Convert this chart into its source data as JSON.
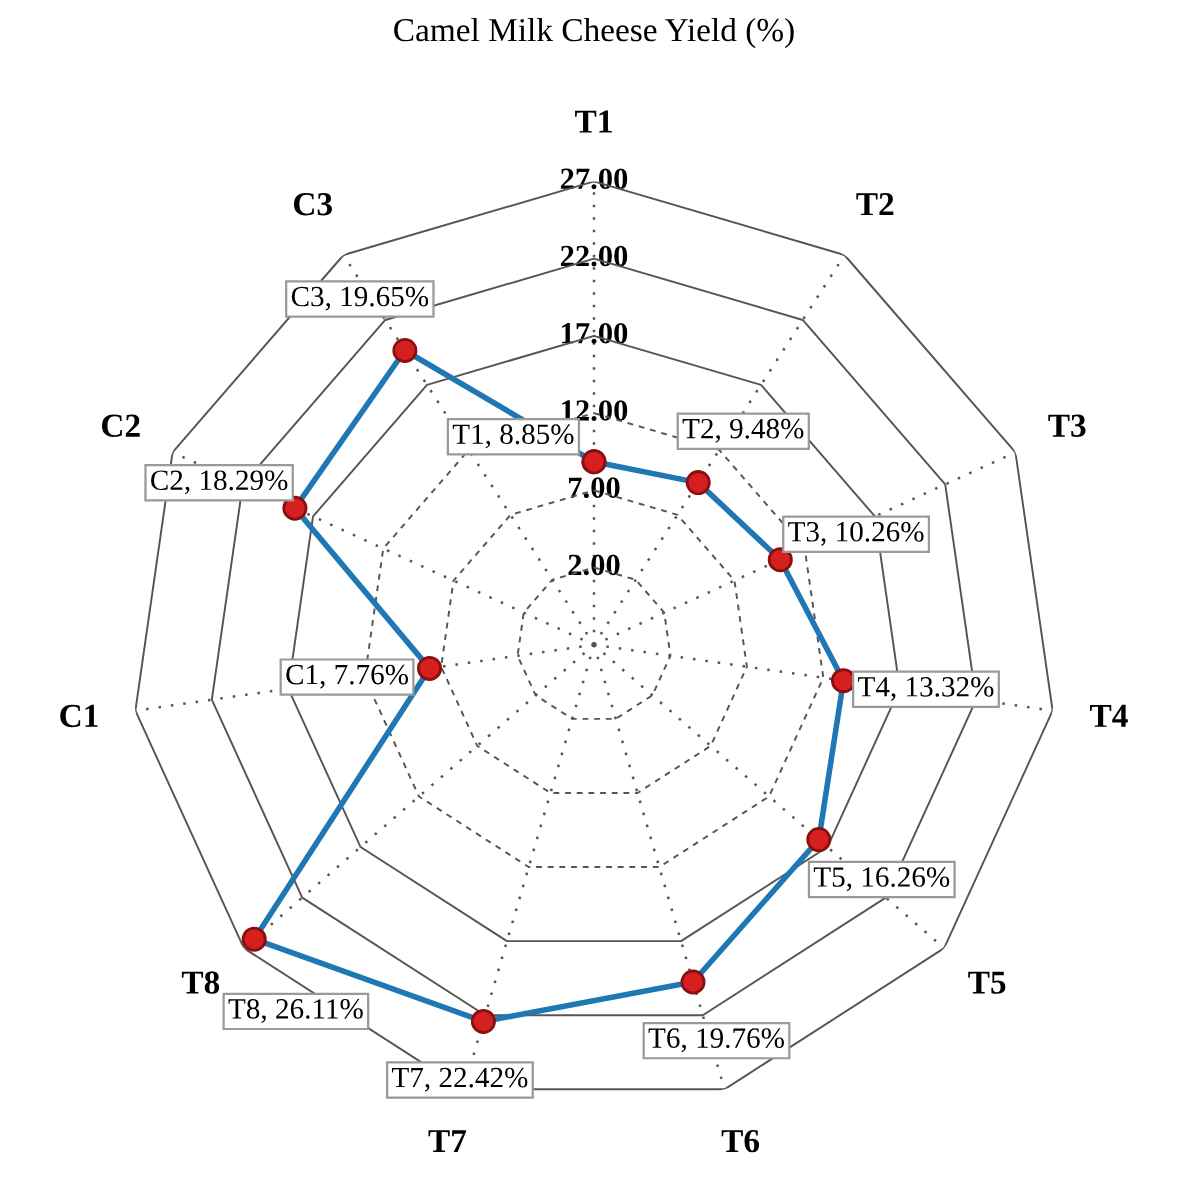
{
  "chart_data": {
    "type": "radar",
    "title": "Camel Milk Cheese Yield (%)",
    "categories": [
      "T1",
      "T2",
      "T3",
      "T4",
      "T5",
      "T6",
      "T7",
      "T8",
      "C1",
      "C2",
      "C3"
    ],
    "series": [
      {
        "color": "#1f77b4",
        "values": [
          8.85,
          9.48,
          10.26,
          13.32,
          16.26,
          19.76,
          22.42,
          26.11,
          7.76,
          18.29,
          19.65
        ],
        "value_labels": [
          "T1, 8.85%",
          "T2, 9.48%",
          "T3, 10.26%",
          "T4, 13.32%",
          "T5, 16.26%",
          "T6, 19.76%",
          "T7, 22.42%",
          "T8, 26.11%",
          "C1, 7.76%",
          "C2, 18.29%",
          "C3, 19.65%"
        ]
      }
    ],
    "ylim": [
      -3,
      27
    ],
    "yticks": [
      {
        "value": 2,
        "label": "2.00"
      },
      {
        "value": 7,
        "label": "7.00"
      },
      {
        "value": 12,
        "label": "12.00"
      },
      {
        "value": 17,
        "label": "17.00"
      },
      {
        "value": 22,
        "label": "22.00"
      },
      {
        "value": 27,
        "label": "27.00"
      }
    ],
    "marker": "circle",
    "line_style": "solid",
    "grid": true
  }
}
